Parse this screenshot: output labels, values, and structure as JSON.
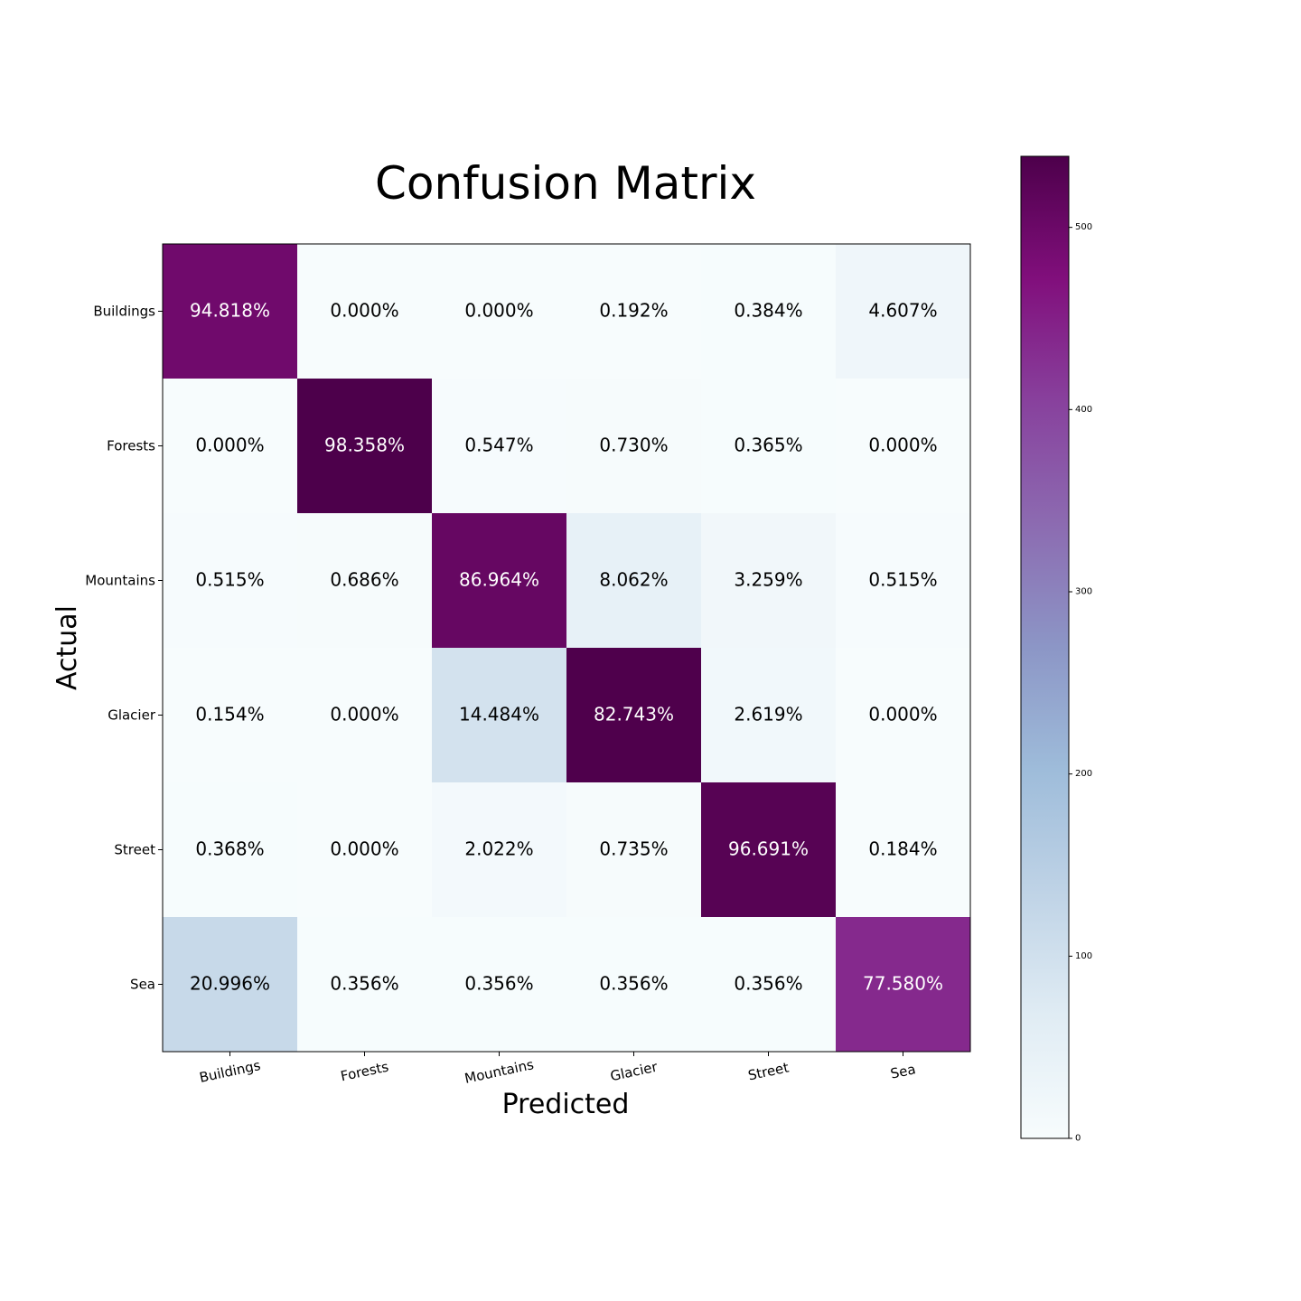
{
  "chart_data": {
    "type": "heatmap",
    "title": "Confusion Matrix",
    "xlabel": "Predicted",
    "ylabel": "Actual",
    "x_categories": [
      "Buildings",
      "Forests",
      "Mountains",
      "Glacier",
      "Street",
      "Sea"
    ],
    "y_categories": [
      "Buildings",
      "Forests",
      "Mountains",
      "Glacier",
      "Street",
      "Sea"
    ],
    "cell_labels": [
      [
        "94.818%",
        "0.000%",
        "0.000%",
        "0.192%",
        "0.384%",
        "4.607%"
      ],
      [
        "0.000%",
        "98.358%",
        "0.547%",
        "0.730%",
        "0.365%",
        "0.000%"
      ],
      [
        "0.515%",
        "0.686%",
        "86.964%",
        "8.062%",
        "3.259%",
        "0.515%"
      ],
      [
        "0.154%",
        "0.000%",
        "14.484%",
        "82.743%",
        "2.619%",
        "0.000%"
      ],
      [
        "0.368%",
        "0.000%",
        "2.022%",
        "0.735%",
        "96.691%",
        "0.184%"
      ],
      [
        "20.996%",
        "0.356%",
        "0.356%",
        "0.356%",
        "0.356%",
        "77.580%"
      ]
    ],
    "values": [
      [
        494,
        0,
        0,
        1,
        2,
        24
      ],
      [
        0,
        539,
        3,
        4,
        2,
        0
      ],
      [
        3,
        4,
        507,
        47,
        19,
        3
      ],
      [
        1,
        0,
        94,
        537,
        17,
        0
      ],
      [
        2,
        0,
        11,
        4,
        526,
        1
      ],
      [
        118,
        2,
        2,
        2,
        2,
        436
      ]
    ],
    "colorbar": {
      "min": 0,
      "max": 539,
      "ticks": [
        0,
        100,
        200,
        300,
        400,
        500
      ],
      "colormap": "BuPu",
      "colors": [
        "#f7fcfd",
        "#e0ecf4",
        "#bfd3e6",
        "#9ebcda",
        "#8c96c6",
        "#8c6bb1",
        "#88419d",
        "#810f7c",
        "#4d004b"
      ]
    },
    "text_color_dark": "#000000",
    "text_color_light": "#ffffff"
  }
}
